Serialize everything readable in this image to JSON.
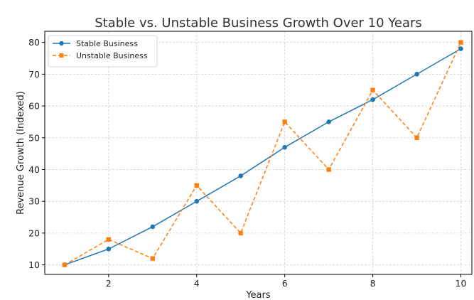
{
  "chart_data": {
    "type": "line",
    "title": "Stable vs. Unstable Business Growth Over 10 Years",
    "xlabel": "Years",
    "ylabel": "Revenue Growth (Indexed)",
    "x": [
      1,
      2,
      3,
      4,
      5,
      6,
      7,
      8,
      9,
      10
    ],
    "xlim": [
      0.55,
      10.25
    ],
    "ylim": [
      7,
      83.5
    ],
    "xticks": [
      "2",
      "4",
      "6",
      "8",
      "10"
    ],
    "yticks": [
      "10",
      "20",
      "30",
      "40",
      "50",
      "60",
      "70",
      "80"
    ],
    "grid": true,
    "legend_position": "top-left",
    "series": [
      {
        "name": "Stable Business",
        "values": [
          10,
          15,
          22,
          30,
          38,
          47,
          55,
          62,
          70,
          78
        ],
        "color": "#1f77b4",
        "line_style": "solid",
        "marker": "circle"
      },
      {
        "name": "Unstable Business",
        "values": [
          10,
          18,
          12,
          35,
          20,
          55,
          40,
          65,
          50,
          80
        ],
        "color": "#ff7f0e",
        "line_style": "dashed",
        "marker": "square"
      }
    ]
  }
}
